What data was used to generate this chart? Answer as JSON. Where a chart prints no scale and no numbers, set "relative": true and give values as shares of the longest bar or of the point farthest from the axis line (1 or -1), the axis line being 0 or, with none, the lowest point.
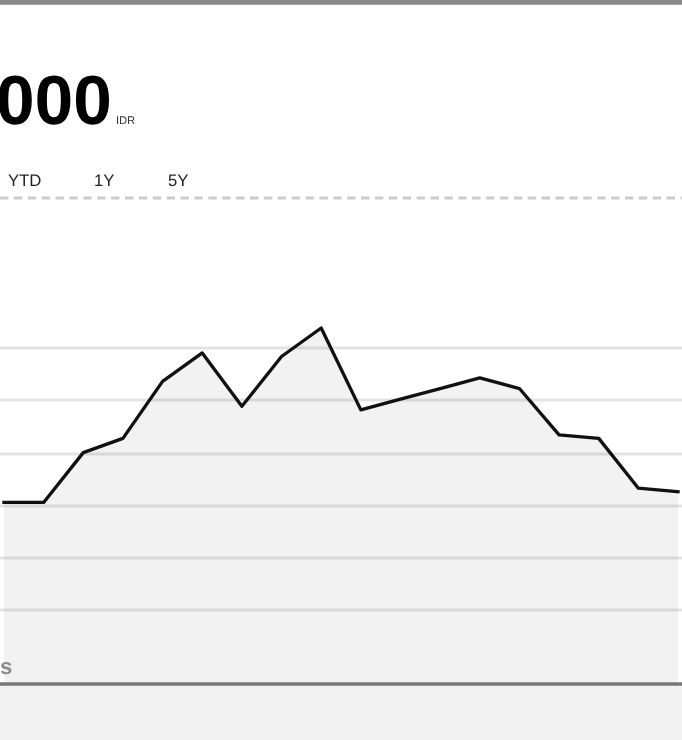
{
  "chart_data": {
    "type": "area",
    "relative": true,
    "title": "000",
    "annotations": [
      "IDR",
      "YTD",
      "1Y",
      "5Y",
      "s"
    ],
    "categories": [
      null,
      null,
      null,
      null,
      null,
      null,
      null,
      null,
      null,
      null,
      null,
      null,
      null,
      null,
      null,
      null,
      null,
      null
    ],
    "series": [
      {
        "color": "#111111",
        "values": [
          0.51,
          0.51,
          0.65,
          0.69,
          0.85,
          0.93,
          0.78,
          0.92,
          1,
          0.77,
          0.8,
          0.83,
          0.86,
          0.83,
          0.7,
          0.69,
          0.55,
          0.54
        ]
      }
    ],
    "grid": "y",
    "legend": false,
    "marker": "none",
    "line_style": "solid"
  }
}
